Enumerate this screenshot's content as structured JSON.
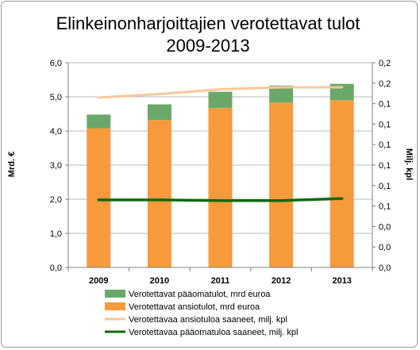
{
  "chart_data": {
    "type": "bar",
    "title_line1": "Elinkeinonharjoittajien verotettavat tulot",
    "title_line2": "2009-2013",
    "ylabel": "Mrd. €",
    "y2label": "Milj. kpl",
    "categories": [
      "2009",
      "2010",
      "2011",
      "2012",
      "2013"
    ],
    "ylim": [
      0,
      6
    ],
    "yticks": [
      "0,0",
      "1,0",
      "2,0",
      "3,0",
      "4,0",
      "5,0",
      "6,0"
    ],
    "y2ticks": [
      "0,0",
      "0,0",
      "0,0",
      "0,1",
      "0,1",
      "0,1",
      "0,1",
      "0,1",
      "0,1",
      "0,2",
      "0,2"
    ],
    "grid": true,
    "legend_position": "bottom",
    "series": [
      {
        "name": "Verotettavat pääomatulot, mrd  euroa",
        "kind": "bar-stack-top",
        "color": "#6aa86a",
        "values": [
          0.4,
          0.46,
          0.48,
          0.5,
          0.48
        ]
      },
      {
        "name": "Verotettavat ansiotulot, mrd  euroa",
        "kind": "bar-stack-bottom",
        "color": "#f79a3c",
        "values": [
          4.08,
          4.32,
          4.67,
          4.83,
          4.9
        ]
      },
      {
        "name": "Verotettavaa ansiotuloa saaneet, milj. kpl",
        "kind": "line",
        "color": "#f9c89b",
        "values": [
          4.98,
          5.08,
          5.22,
          5.28,
          5.28
        ]
      },
      {
        "name": "Verotettavaa pääomatuloa saaneet, milj. kpl",
        "kind": "line",
        "color": "#0f6a0f",
        "values": [
          1.98,
          1.98,
          1.96,
          1.96,
          2.02
        ]
      }
    ]
  }
}
